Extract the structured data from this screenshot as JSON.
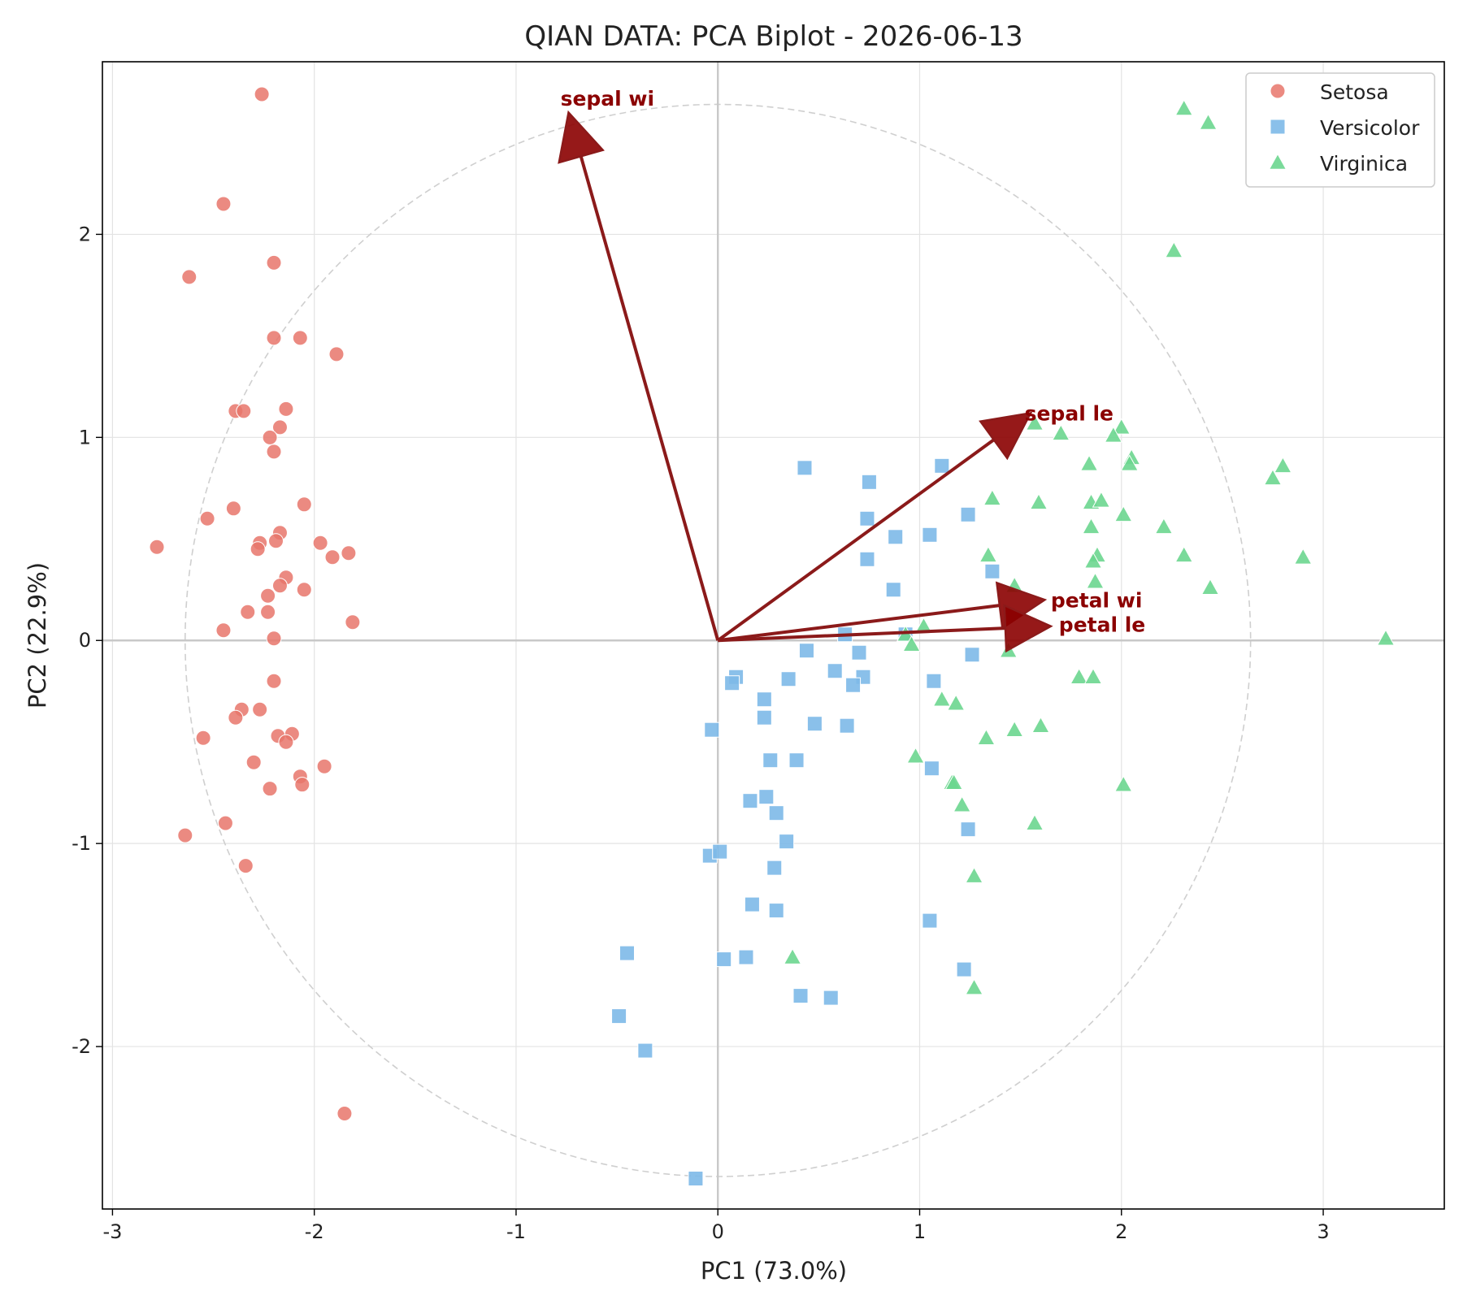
{
  "chart_data": {
    "type": "scatter",
    "title": "QIAN DATA: PCA Biplot - 2026-06-13",
    "xlabel": "PC1 (73.0%)",
    "ylabel": "PC2 (22.9%)",
    "xlim": [
      -3.05,
      3.6
    ],
    "ylim": [
      -2.8,
      2.85
    ],
    "xticks": [
      -3,
      -2,
      -1,
      0,
      1,
      2,
      3
    ],
    "yticks": [
      -2,
      -1,
      0,
      1,
      2
    ],
    "grid": true,
    "legend_position": "top-right",
    "circle_radius": 2.64,
    "series": [
      {
        "name": "Setosa",
        "marker": "circle",
        "color": "#e8766b",
        "points": [
          [
            -2.26,
            2.69
          ],
          [
            -2.45,
            2.15
          ],
          [
            -2.62,
            1.79
          ],
          [
            -2.2,
            1.86
          ],
          [
            -2.2,
            1.49
          ],
          [
            -2.07,
            1.49
          ],
          [
            -1.89,
            1.41
          ],
          [
            -2.39,
            1.13
          ],
          [
            -2.35,
            1.13
          ],
          [
            -2.14,
            1.14
          ],
          [
            -2.17,
            1.05
          ],
          [
            -2.22,
            1.0
          ],
          [
            -2.2,
            0.93
          ],
          [
            -2.05,
            0.67
          ],
          [
            -2.4,
            0.65
          ],
          [
            -2.53,
            0.6
          ],
          [
            -2.17,
            0.53
          ],
          [
            -2.27,
            0.48
          ],
          [
            -2.19,
            0.49
          ],
          [
            -1.97,
            0.48
          ],
          [
            -2.78,
            0.46
          ],
          [
            -2.28,
            0.45
          ],
          [
            -1.83,
            0.43
          ],
          [
            -1.91,
            0.41
          ],
          [
            -2.14,
            0.31
          ],
          [
            -2.17,
            0.27
          ],
          [
            -2.05,
            0.25
          ],
          [
            -2.23,
            0.22
          ],
          [
            -2.33,
            0.14
          ],
          [
            -2.23,
            0.14
          ],
          [
            -1.81,
            0.09
          ],
          [
            -2.45,
            0.05
          ],
          [
            -2.2,
            0.01
          ],
          [
            -2.2,
            -0.2
          ],
          [
            -2.36,
            -0.34
          ],
          [
            -2.27,
            -0.34
          ],
          [
            -2.39,
            -0.38
          ],
          [
            -2.55,
            -0.48
          ],
          [
            -2.18,
            -0.47
          ],
          [
            -2.11,
            -0.46
          ],
          [
            -2.14,
            -0.5
          ],
          [
            -2.3,
            -0.6
          ],
          [
            -1.95,
            -0.62
          ],
          [
            -2.07,
            -0.67
          ],
          [
            -2.06,
            -0.71
          ],
          [
            -2.22,
            -0.73
          ],
          [
            -2.44,
            -0.9
          ],
          [
            -2.64,
            -0.96
          ],
          [
            -2.34,
            -1.11
          ],
          [
            -1.85,
            -2.33
          ]
        ]
      },
      {
        "name": "Versicolor",
        "marker": "square",
        "color": "#7db9e8",
        "points": [
          [
            0.43,
            0.85
          ],
          [
            1.11,
            0.86
          ],
          [
            0.75,
            0.78
          ],
          [
            1.24,
            0.62
          ],
          [
            0.74,
            0.6
          ],
          [
            0.88,
            0.51
          ],
          [
            1.05,
            0.52
          ],
          [
            0.74,
            0.4
          ],
          [
            1.36,
            0.34
          ],
          [
            0.87,
            0.25
          ],
          [
            0.93,
            0.03
          ],
          [
            0.63,
            0.03
          ],
          [
            0.44,
            -0.05
          ],
          [
            0.7,
            -0.06
          ],
          [
            1.26,
            -0.07
          ],
          [
            0.58,
            -0.15
          ],
          [
            0.72,
            -0.18
          ],
          [
            0.09,
            -0.18
          ],
          [
            0.35,
            -0.19
          ],
          [
            0.07,
            -0.21
          ],
          [
            0.67,
            -0.22
          ],
          [
            1.07,
            -0.2
          ],
          [
            0.23,
            -0.29
          ],
          [
            0.23,
            -0.38
          ],
          [
            0.48,
            -0.41
          ],
          [
            0.64,
            -0.42
          ],
          [
            -0.03,
            -0.44
          ],
          [
            0.26,
            -0.59
          ],
          [
            0.39,
            -0.59
          ],
          [
            1.06,
            -0.63
          ],
          [
            0.24,
            -0.77
          ],
          [
            0.16,
            -0.79
          ],
          [
            0.29,
            -0.85
          ],
          [
            1.24,
            -0.93
          ],
          [
            0.34,
            -0.99
          ],
          [
            -0.04,
            -1.06
          ],
          [
            0.01,
            -1.04
          ],
          [
            0.28,
            -1.12
          ],
          [
            0.17,
            -1.3
          ],
          [
            0.29,
            -1.33
          ],
          [
            1.05,
            -1.38
          ],
          [
            -0.45,
            -1.54
          ],
          [
            0.03,
            -1.57
          ],
          [
            0.14,
            -1.56
          ],
          [
            1.22,
            -1.62
          ],
          [
            0.41,
            -1.75
          ],
          [
            0.56,
            -1.76
          ],
          [
            -0.49,
            -1.85
          ],
          [
            -0.36,
            -2.02
          ],
          [
            -0.11,
            -2.65
          ]
        ]
      },
      {
        "name": "Virginica",
        "marker": "triangle",
        "color": "#6bd68f",
        "points": [
          [
            2.31,
            2.62
          ],
          [
            2.43,
            2.55
          ],
          [
            2.26,
            1.92
          ],
          [
            1.57,
            1.07
          ],
          [
            2.0,
            1.05
          ],
          [
            1.7,
            1.02
          ],
          [
            1.96,
            1.01
          ],
          [
            2.05,
            0.9
          ],
          [
            2.04,
            0.87
          ],
          [
            1.84,
            0.87
          ],
          [
            2.8,
            0.86
          ],
          [
            2.75,
            0.8
          ],
          [
            1.36,
            0.7
          ],
          [
            1.59,
            0.68
          ],
          [
            1.85,
            0.68
          ],
          [
            1.9,
            0.69
          ],
          [
            2.01,
            0.62
          ],
          [
            2.21,
            0.56
          ],
          [
            1.85,
            0.56
          ],
          [
            1.34,
            0.42
          ],
          [
            1.88,
            0.42
          ],
          [
            2.31,
            0.42
          ],
          [
            2.9,
            0.41
          ],
          [
            1.86,
            0.39
          ],
          [
            1.87,
            0.29
          ],
          [
            2.44,
            0.26
          ],
          [
            1.47,
            0.27
          ],
          [
            1.02,
            0.07
          ],
          [
            0.93,
            0.03
          ],
          [
            0.96,
            -0.02
          ],
          [
            3.31,
            0.01
          ],
          [
            1.44,
            -0.05
          ],
          [
            1.79,
            -0.18
          ],
          [
            1.86,
            -0.18
          ],
          [
            1.11,
            -0.29
          ],
          [
            1.18,
            -0.31
          ],
          [
            1.6,
            -0.42
          ],
          [
            1.47,
            -0.44
          ],
          [
            1.33,
            -0.48
          ],
          [
            0.98,
            -0.57
          ],
          [
            1.16,
            -0.7
          ],
          [
            1.17,
            -0.7
          ],
          [
            2.01,
            -0.71
          ],
          [
            1.21,
            -0.81
          ],
          [
            1.57,
            -0.9
          ],
          [
            1.27,
            -1.16
          ],
          [
            0.37,
            -1.56
          ],
          [
            1.27,
            -1.71
          ]
        ]
      }
    ],
    "loadings": [
      {
        "name": "sepal wi",
        "x": -0.74,
        "y": 2.6,
        "label_x": -0.78,
        "label_y": 2.67
      },
      {
        "name": "sepal le",
        "x": 1.55,
        "y": 1.12,
        "label_x": 1.52,
        "label_y": 1.12
      },
      {
        "name": "petal wi",
        "x": 1.62,
        "y": 0.2,
        "label_x": 1.65,
        "label_y": 0.2
      },
      {
        "name": "petal le",
        "x": 1.65,
        "y": 0.07,
        "label_x": 1.69,
        "label_y": 0.08
      }
    ]
  }
}
